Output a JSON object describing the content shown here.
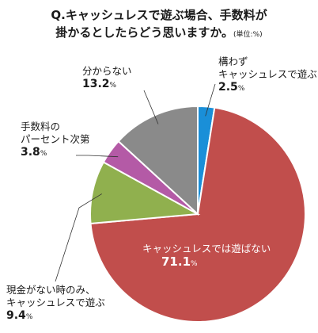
{
  "title": {
    "line1": "Q.キャッシュレスで遊ぶ場合、手数料が",
    "line2": "掛かるとしたらどう思いますか。",
    "unit": "(単位:%)"
  },
  "percent_sign": "%",
  "chart_data": {
    "type": "pie",
    "title": "Q.キャッシュレスで遊ぶ場合、手数料が掛かるとしたらどう思いますか。",
    "unit": "%",
    "slices": [
      {
        "label": "構わず キャッシュレスで遊ぶ",
        "value": 2.5,
        "color": "#1a8fd8"
      },
      {
        "label": "キャッシュレスでは遊ばない",
        "value": 71.1,
        "color": "#c14e4c"
      },
      {
        "label": "現金がない時のみ、キャッシュレスで遊ぶ",
        "value": 9.4,
        "color": "#90b04e"
      },
      {
        "label": "手数料の パーセント次第",
        "value": 3.8,
        "color": "#b45aa6"
      },
      {
        "label": "分からない",
        "value": 13.2,
        "color": "#8a8a8a"
      }
    ]
  },
  "labels": {
    "s0": {
      "line1": "構わず",
      "line2": "キャッシュレスで遊ぶ",
      "value": "2.5"
    },
    "s1": {
      "line1": "キャッシュレスでは遊ばない",
      "value": "71.1"
    },
    "s2": {
      "line1": "現金がない時のみ、",
      "line2": "キャッシュレスで遊ぶ",
      "value": "9.4"
    },
    "s3": {
      "line1": "手数料の",
      "line2": "パーセント次第",
      "value": "3.8"
    },
    "s4": {
      "line1": "分からない",
      "value": "13.2"
    }
  }
}
